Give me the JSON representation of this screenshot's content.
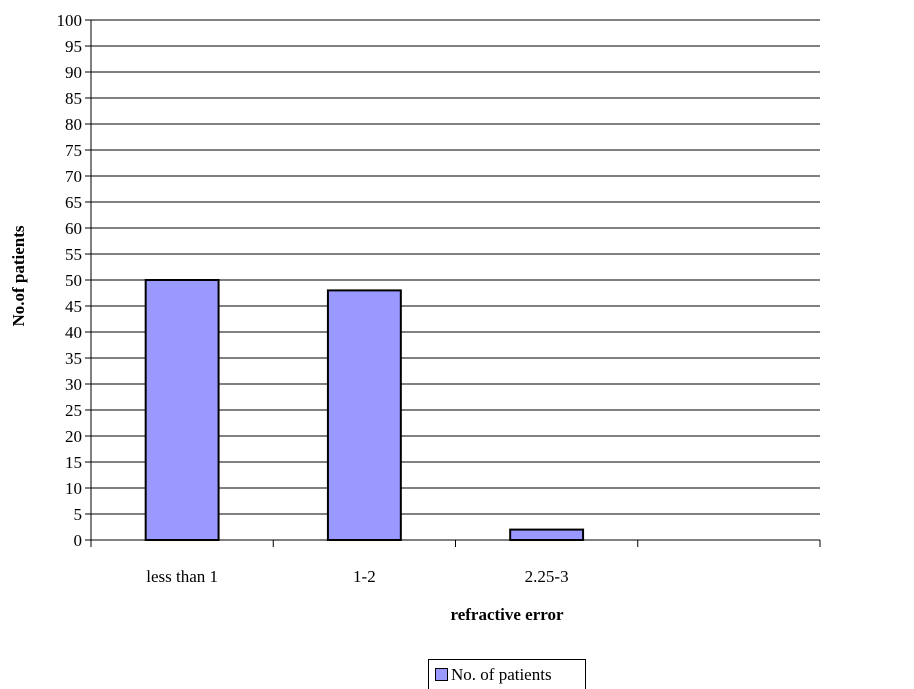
{
  "chart_data": {
    "type": "bar",
    "categories": [
      "less than 1",
      "1-2",
      "2.25-3",
      ""
    ],
    "series": [
      {
        "name": "No. of patients",
        "values": [
          50,
          48,
          2,
          0
        ]
      }
    ],
    "xlabel": "refractive error",
    "ylabel": "No.of patients",
    "ylim": [
      0,
      100
    ],
    "ytick_step": 5,
    "grid": true,
    "legend_position": "bottom",
    "bar_color": "#9999ff"
  }
}
